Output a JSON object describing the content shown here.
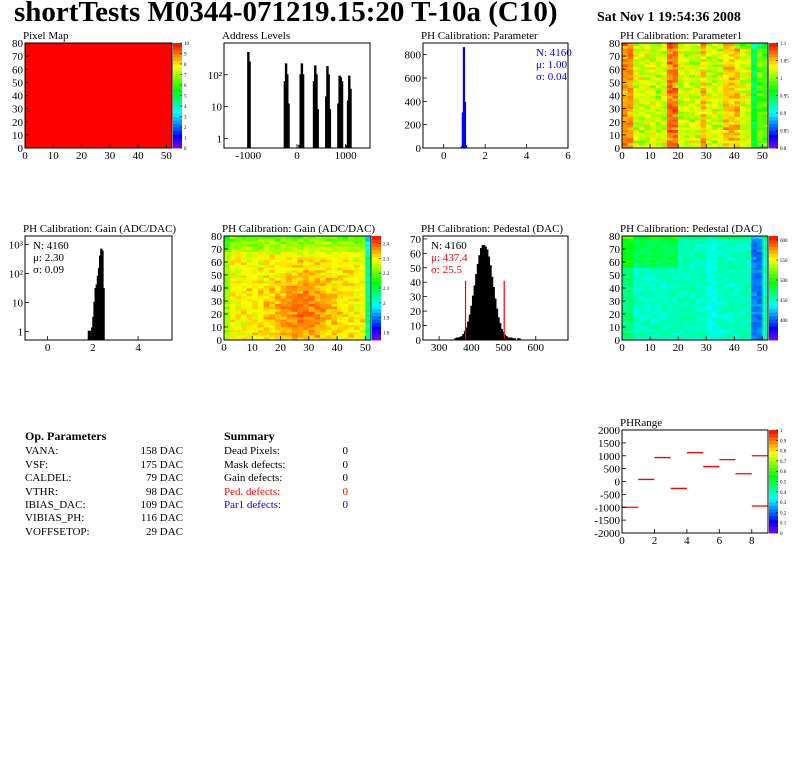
{
  "header": {
    "title": "shortTests M0344-071219.15:20 T-10a (C10)",
    "date": "Sat Nov  1 19:54:36 2008"
  },
  "op_parameters": {
    "heading": "Op. Parameters",
    "rows": [
      {
        "name": "VANA:",
        "value": "158 DAC"
      },
      {
        "name": "VSF:",
        "value": "175 DAC"
      },
      {
        "name": "CALDEL:",
        "value": "79 DAC"
      },
      {
        "name": "VTHR:",
        "value": "98 DAC"
      },
      {
        "name": "IBIAS_DAC:",
        "value": "109 DAC"
      },
      {
        "name": "VIBIAS_PH:",
        "value": "116 DAC"
      },
      {
        "name": "VOFFSETOP:",
        "value": "29 DAC"
      }
    ]
  },
  "summary": {
    "heading": "Summary",
    "rows": [
      {
        "name": "Dead Pixels:",
        "value": "0",
        "color": "#000000"
      },
      {
        "name": "Mask defects:",
        "value": "0",
        "color": "#000000"
      },
      {
        "name": "Gain defects:",
        "value": "0",
        "color": "#000000"
      },
      {
        "name": "Ped. defects:",
        "value": "0",
        "color": "#ff0000"
      },
      {
        "name": "Par1 defects:",
        "value": "0",
        "color": "#0000ff"
      }
    ]
  },
  "chart_data": [
    {
      "type": "heatmap",
      "title": "Pixel Map",
      "xlim": [
        0,
        52
      ],
      "ylim": [
        0,
        80
      ],
      "zlim": [
        0,
        10
      ],
      "xticks": [
        "0",
        "10",
        "20",
        "30",
        "40",
        "50"
      ],
      "xtick_values": [
        0,
        10,
        20,
        30,
        40,
        50
      ],
      "yticks": [
        "0",
        "10",
        "20",
        "30",
        "40",
        "50",
        "60",
        "70",
        "80"
      ],
      "ytick_values": [
        0,
        10,
        20,
        30,
        40,
        50,
        60,
        70,
        80
      ],
      "zticks": [
        "0",
        "1",
        "2",
        "3",
        "4",
        "5",
        "6",
        "7",
        "8",
        "9",
        "10"
      ],
      "ztick_values": [
        0,
        1,
        2,
        3,
        4,
        5,
        6,
        7,
        8,
        9,
        10
      ],
      "pattern": "uniform",
      "value": 10
    },
    {
      "type": "bar",
      "title": "Address Levels",
      "log_y": true,
      "xlim": [
        -1500,
        1500
      ],
      "ylim": [
        0.5,
        1000
      ],
      "color": "#000000",
      "xticks": [
        "-1000",
        "0",
        "1000"
      ],
      "xtick_values": [
        -1000,
        0,
        1000
      ],
      "yticks": [
        "1",
        "10",
        "10²"
      ],
      "ytick_values": [
        1,
        10,
        100
      ],
      "bin_width": 25,
      "bins": [
        [
          -1012,
          500
        ],
        [
          -987,
          250
        ],
        [
          -262,
          60
        ],
        [
          -237,
          220
        ],
        [
          -212,
          100
        ],
        [
          -187,
          12
        ],
        [
          38,
          0.6
        ],
        [
          63,
          100
        ],
        [
          88,
          220
        ],
        [
          113,
          100
        ],
        [
          338,
          60
        ],
        [
          363,
          190
        ],
        [
          388,
          100
        ],
        [
          413,
          8
        ],
        [
          588,
          20
        ],
        [
          613,
          180
        ],
        [
          638,
          100
        ],
        [
          663,
          8
        ],
        [
          838,
          12
        ],
        [
          863,
          90
        ],
        [
          888,
          80
        ],
        [
          913,
          60
        ],
        [
          1012,
          0.6
        ],
        [
          1037,
          15
        ],
        [
          1062,
          90
        ],
        [
          1087,
          35
        ]
      ]
    },
    {
      "type": "bar",
      "title": "PH Calibration: Parameter",
      "xlim": [
        -1,
        6
      ],
      "ylim": [
        0,
        900
      ],
      "color": "#0000ff",
      "xticks": [
        "0",
        "2",
        "4",
        "6"
      ],
      "xtick_values": [
        0,
        2,
        4,
        6
      ],
      "yticks": [
        "0",
        "200",
        "400",
        "600",
        "800"
      ],
      "ytick_values": [
        0,
        200,
        400,
        600,
        800
      ],
      "bin_width": 0.05,
      "bins": [
        [
          0.85,
          10
        ],
        [
          0.9,
          300
        ],
        [
          0.95,
          860
        ],
        [
          1.0,
          390
        ],
        [
          1.05,
          20
        ]
      ],
      "stats": [
        {
          "text": "N: 4160",
          "color": "#0000ff"
        },
        {
          "text": "μ: 1.00",
          "color": "#0000ff"
        },
        {
          "text": "σ: 0.04",
          "color": "#0000ff"
        }
      ],
      "stats_position": "top-right"
    },
    {
      "type": "heatmap",
      "title": "PH Calibration: Parameter1",
      "xlim": [
        0,
        52
      ],
      "ylim": [
        0,
        80
      ],
      "zlim": [
        0.8,
        1.1
      ],
      "xticks": [
        "0",
        "10",
        "20",
        "30",
        "40",
        "50"
      ],
      "xtick_values": [
        0,
        10,
        20,
        30,
        40,
        50
      ],
      "yticks": [
        "0",
        "10",
        "20",
        "30",
        "40",
        "50",
        "60",
        "70",
        "80"
      ],
      "ytick_values": [
        0,
        10,
        20,
        30,
        40,
        50,
        60,
        70,
        80
      ],
      "zticks": [
        "0.8",
        "0.85",
        "0.9",
        "0.95",
        "1",
        "1.05",
        "1.1"
      ],
      "ztick_values": [
        0.8,
        0.85,
        0.9,
        0.95,
        1,
        1.05,
        1.1
      ],
      "pattern": "param1"
    },
    {
      "type": "bar",
      "title": "PH Calibration: Gain (ADC/DAC)",
      "log_y": true,
      "xlim": [
        -1,
        5.5
      ],
      "ylim": [
        0.5,
        2000
      ],
      "color": "#000000",
      "xticks": [
        "0",
        "2",
        "4"
      ],
      "xtick_values": [
        0,
        2,
        4
      ],
      "yticks": [
        "1",
        "10",
        "10²",
        "10³"
      ],
      "ytick_values": [
        1,
        10,
        100,
        1000
      ],
      "bin_width": 0.05,
      "bins": [
        [
          1.8,
          1
        ],
        [
          1.85,
          1
        ],
        [
          1.95,
          1.3
        ],
        [
          2.0,
          3
        ],
        [
          2.05,
          10
        ],
        [
          2.1,
          30
        ],
        [
          2.15,
          40
        ],
        [
          2.2,
          80
        ],
        [
          2.25,
          150
        ],
        [
          2.3,
          400
        ],
        [
          2.35,
          700
        ],
        [
          2.4,
          600
        ],
        [
          2.45,
          30
        ]
      ],
      "stats": [
        {
          "text": "N: 4160",
          "color": "#000000"
        },
        {
          "text": "μ: 2.30",
          "color": "#000000"
        },
        {
          "text": "σ: 0.09",
          "color": "#000000"
        }
      ],
      "stats_position": "top-left"
    },
    {
      "type": "heatmap",
      "title": "PH Calibration: Gain (ADC/DAC)",
      "xlim": [
        0,
        52
      ],
      "ylim": [
        0,
        80
      ],
      "zlim": [
        1.75,
        2.45
      ],
      "xticks": [
        "0",
        "10",
        "20",
        "30",
        "40",
        "50"
      ],
      "xtick_values": [
        0,
        10,
        20,
        30,
        40,
        50
      ],
      "yticks": [
        "0",
        "10",
        "20",
        "30",
        "40",
        "50",
        "60",
        "70",
        "80"
      ],
      "ytick_values": [
        0,
        10,
        20,
        30,
        40,
        50,
        60,
        70,
        80
      ],
      "zticks": [
        "1.8",
        "1.9",
        "2",
        "2.1",
        "2.2",
        "2.3",
        "2.4"
      ],
      "ztick_values": [
        1.8,
        1.9,
        2,
        2.1,
        2.2,
        2.3,
        2.4
      ],
      "pattern": "gain"
    },
    {
      "type": "bar",
      "title": "PH Calibration: Pedestal (DAC)",
      "xlim": [
        250,
        700
      ],
      "ylim": [
        0,
        72
      ],
      "color": "#000000",
      "fill": "#f4b4b4",
      "xticks": [
        "300",
        "400",
        "500",
        "600"
      ],
      "xtick_values": [
        300,
        400,
        500,
        600
      ],
      "yticks": [
        "0",
        "10",
        "20",
        "30",
        "40",
        "50",
        "60",
        "70"
      ],
      "ytick_values": [
        0,
        10,
        20,
        30,
        40,
        50,
        60,
        70
      ],
      "bin_width": 5,
      "bins": [
        [
          350,
          0.5
        ],
        [
          355,
          1
        ],
        [
          360,
          1
        ],
        [
          365,
          1.5
        ],
        [
          370,
          2
        ],
        [
          375,
          3.5
        ],
        [
          380,
          5.5
        ],
        [
          385,
          8
        ],
        [
          390,
          12
        ],
        [
          395,
          17
        ],
        [
          400,
          23
        ],
        [
          405,
          30
        ],
        [
          410,
          37
        ],
        [
          415,
          45
        ],
        [
          420,
          52
        ],
        [
          425,
          58
        ],
        [
          430,
          63
        ],
        [
          435,
          65
        ],
        [
          440,
          64
        ],
        [
          445,
          62
        ],
        [
          450,
          57
        ],
        [
          455,
          51
        ],
        [
          460,
          43
        ],
        [
          465,
          36
        ],
        [
          470,
          28
        ],
        [
          475,
          21
        ],
        [
          480,
          15
        ],
        [
          485,
          11
        ],
        [
          490,
          7
        ],
        [
          495,
          5
        ],
        [
          500,
          3
        ],
        [
          505,
          2
        ],
        [
          510,
          1
        ],
        [
          515,
          1
        ],
        [
          520,
          1
        ],
        [
          530,
          0.5
        ],
        [
          545,
          0.5
        ]
      ],
      "cut_lines": [
        {
          "x": 382,
          "y": 41,
          "color": "#ff0000"
        },
        {
          "x": 502,
          "y": 41,
          "color": "#ff0000"
        }
      ],
      "stats": [
        {
          "text": "N: 4160",
          "color": "#000000"
        },
        {
          "text": "μ: 437.4",
          "color": "#ff0000"
        },
        {
          "text": "σ: 25.5",
          "color": "#ff0000"
        }
      ],
      "stats_position": "top-left"
    },
    {
      "type": "heatmap",
      "title": "PH Calibration: Pedestal (DAC)",
      "xlim": [
        0,
        52
      ],
      "ylim": [
        0,
        80
      ],
      "zlim": [
        350,
        610
      ],
      "xticks": [
        "0",
        "10",
        "20",
        "30",
        "40",
        "50"
      ],
      "xtick_values": [
        0,
        10,
        20,
        30,
        40,
        50
      ],
      "yticks": [
        "0",
        "10",
        "20",
        "30",
        "40",
        "50",
        "60",
        "70",
        "80"
      ],
      "ytick_values": [
        0,
        10,
        20,
        30,
        40,
        50,
        60,
        70,
        80
      ],
      "zticks": [
        "400",
        "450",
        "500",
        "550",
        "600"
      ],
      "ztick_values": [
        400,
        450,
        500,
        550,
        600
      ],
      "pattern": "pedestal"
    },
    {
      "type": "segments",
      "title": "PHRange",
      "xlim": [
        0,
        9
      ],
      "ylim": [
        -2000,
        2000
      ],
      "zlim": [
        0,
        1
      ],
      "color": "#ff0000",
      "xticks": [
        "0",
        "2",
        "4",
        "6",
        "8"
      ],
      "xtick_values": [
        0,
        2,
        4,
        6,
        8
      ],
      "yticks": [
        "-2000",
        "-1500",
        "-1000",
        "-500",
        "0",
        "500",
        "1000",
        "1500",
        "2000"
      ],
      "ytick_values": [
        -2000,
        -1500,
        -1000,
        -500,
        0,
        500,
        1000,
        1500,
        2000
      ],
      "zticks": [
        "0",
        "0.1",
        "0.2",
        "0.3",
        "0.4",
        "0.5",
        "0.6",
        "0.7",
        "0.8",
        "0.9",
        "1"
      ],
      "ztick_values": [
        0,
        0.1,
        0.2,
        0.3,
        0.4,
        0.5,
        0.6,
        0.7,
        0.8,
        0.9,
        1
      ],
      "segments": [
        {
          "x": [
            0,
            1
          ],
          "y": -1000
        },
        {
          "x": [
            1,
            2
          ],
          "y": 80
        },
        {
          "x": [
            2,
            3
          ],
          "y": 930
        },
        {
          "x": [
            3,
            4
          ],
          "y": -270
        },
        {
          "x": [
            4,
            5
          ],
          "y": 1120
        },
        {
          "x": [
            5,
            6
          ],
          "y": 580
        },
        {
          "x": [
            6,
            7
          ],
          "y": 850
        },
        {
          "x": [
            7,
            8
          ],
          "y": 300
        },
        {
          "x": [
            8,
            9
          ],
          "y": 1000
        },
        {
          "x": [
            8,
            9
          ],
          "y": -950
        }
      ]
    }
  ]
}
